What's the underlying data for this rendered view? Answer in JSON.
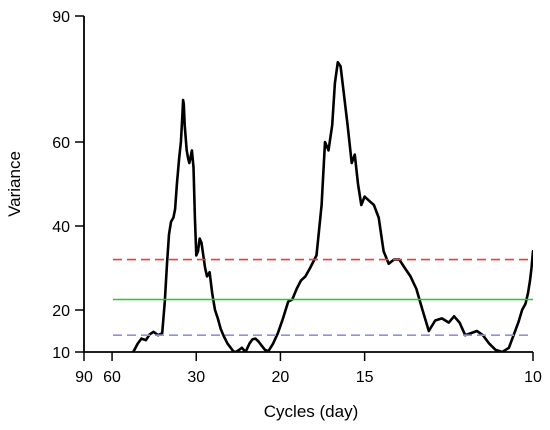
{
  "chart_data": {
    "type": "line",
    "title": "",
    "xlabel": "Cycles (day)",
    "ylabel": "Variance",
    "x_scale": "reciprocal",
    "x_ticks": [
      90,
      60,
      30,
      20,
      15,
      10
    ],
    "y_ticks": [
      10,
      20,
      40,
      60,
      90
    ],
    "xlim": [
      90,
      10
    ],
    "ylim": [
      10,
      90
    ],
    "grid": false,
    "legend": "none",
    "series": [
      {
        "color": "#000000",
        "style": "solid",
        "points": [
          [
            48.0,
            10
          ],
          [
            47.4,
            10.5
          ],
          [
            46.0,
            12.0
          ],
          [
            44.5,
            13.2
          ],
          [
            42.8,
            12.8
          ],
          [
            41.5,
            14.2
          ],
          [
            40.2,
            14.8
          ],
          [
            38.8,
            14.0
          ],
          [
            37.6,
            14.5
          ],
          [
            36.9,
            22.0
          ],
          [
            36.3,
            31.0
          ],
          [
            35.8,
            38.0
          ],
          [
            35.3,
            41.0
          ],
          [
            34.7,
            42.0
          ],
          [
            34.3,
            44.0
          ],
          [
            33.9,
            50.0
          ],
          [
            33.4,
            56.0
          ],
          [
            33.0,
            60.0
          ],
          [
            32.7,
            66.0
          ],
          [
            32.55,
            70.0
          ],
          [
            32.4,
            69.0
          ],
          [
            32.2,
            64.0
          ],
          [
            31.8,
            58.0
          ],
          [
            31.5,
            56.0
          ],
          [
            31.3,
            55.0
          ],
          [
            31.1,
            56.0
          ],
          [
            30.8,
            58.0
          ],
          [
            30.5,
            54.0
          ],
          [
            30.25,
            42.0
          ],
          [
            30.0,
            33.0
          ],
          [
            29.7,
            34.0
          ],
          [
            29.4,
            37.0
          ],
          [
            29.1,
            36.0
          ],
          [
            28.8,
            33.0
          ],
          [
            28.5,
            30.0
          ],
          [
            28.2,
            28.0
          ],
          [
            27.8,
            29.0
          ],
          [
            27.4,
            24.0
          ],
          [
            27.0,
            20.0
          ],
          [
            26.6,
            18.0
          ],
          [
            26.2,
            15.5
          ],
          [
            25.8,
            13.8
          ],
          [
            25.3,
            12.0
          ],
          [
            24.9,
            11.0
          ],
          [
            24.6,
            10.2
          ],
          [
            24.3,
            10
          ],
          [
            23.9,
            10.5
          ],
          [
            23.6,
            11.0
          ],
          [
            23.2,
            10
          ],
          [
            22.8,
            12.0
          ],
          [
            22.5,
            13.0
          ],
          [
            22.2,
            13.2
          ],
          [
            21.9,
            12.5
          ],
          [
            21.6,
            11.5
          ],
          [
            21.3,
            10.5
          ],
          [
            21.0,
            10.2
          ],
          [
            20.6,
            12.0
          ],
          [
            20.2,
            14.5
          ],
          [
            19.8,
            18.0
          ],
          [
            19.4,
            22.0
          ],
          [
            19.1,
            22.5
          ],
          [
            18.8,
            25.0
          ],
          [
            18.5,
            27.0
          ],
          [
            18.2,
            28.0
          ],
          [
            17.9,
            30.0
          ],
          [
            17.5,
            33.0
          ],
          [
            17.2,
            45.0
          ],
          [
            17.0,
            60.0
          ],
          [
            16.8,
            58.0
          ],
          [
            16.6,
            64.0
          ],
          [
            16.45,
            74.0
          ],
          [
            16.3,
            79.0
          ],
          [
            16.15,
            78.0
          ],
          [
            16.0,
            72.0
          ],
          [
            15.8,
            64.0
          ],
          [
            15.6,
            55.0
          ],
          [
            15.45,
            57.0
          ],
          [
            15.3,
            50.0
          ],
          [
            15.15,
            45.0
          ],
          [
            15.0,
            47.0
          ],
          [
            14.8,
            46.0
          ],
          [
            14.6,
            45.0
          ],
          [
            14.4,
            42.0
          ],
          [
            14.2,
            34.0
          ],
          [
            14.0,
            31.0
          ],
          [
            13.8,
            32.0
          ],
          [
            13.6,
            32.0
          ],
          [
            13.4,
            30.0
          ],
          [
            13.2,
            28.0
          ],
          [
            13.0,
            25.0
          ],
          [
            12.8,
            20.0
          ],
          [
            12.6,
            15.0
          ],
          [
            12.4,
            17.5
          ],
          [
            12.2,
            18.0
          ],
          [
            12.0,
            17.0
          ],
          [
            11.85,
            18.5
          ],
          [
            11.7,
            17.0
          ],
          [
            11.55,
            14.0
          ],
          [
            11.4,
            14.5
          ],
          [
            11.25,
            15.0
          ],
          [
            11.1,
            14.0
          ],
          [
            10.95,
            12.0
          ],
          [
            10.8,
            10.5
          ],
          [
            10.65,
            10
          ],
          [
            10.5,
            11.0
          ],
          [
            10.4,
            14.0
          ],
          [
            10.3,
            17.0
          ],
          [
            10.22,
            20.0
          ],
          [
            10.15,
            21.5
          ],
          [
            10.1,
            24.0
          ],
          [
            10.06,
            27.0
          ],
          [
            10.03,
            30.0
          ],
          [
            10.0,
            34.0
          ],
          [
            9.97,
            33.0
          ],
          [
            9.94,
            30.0
          ],
          [
            9.91,
            31.0
          ]
        ]
      },
      {
        "color": "#e8403c",
        "style": "dashed",
        "level": 32.0
      },
      {
        "color": "#22cc22",
        "style": "solid",
        "level": 22.5
      },
      {
        "color": "#8f8fe6",
        "style": "dashed",
        "level": 14.0
      }
    ]
  }
}
